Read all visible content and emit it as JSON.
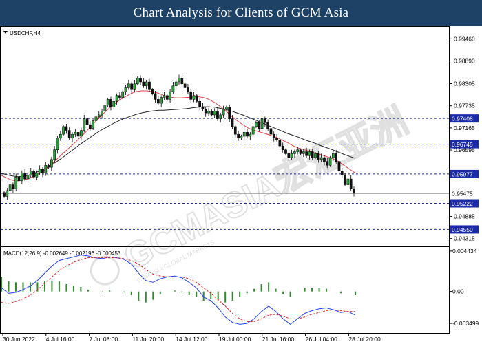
{
  "banner": {
    "title": "Chart Analysis for Clients of GCM Asia"
  },
  "chart_data": {
    "type": "candlestick",
    "symbol_label": "USDCHF,H4",
    "watermark": "GCMASIA宏汇亚洲",
    "watermark_sub": "GCMASIA GLOBAL MARKETS",
    "price_ylim": [
      0.9415,
      0.9975
    ],
    "price_ticks": [
      "0.99460",
      "0.98890",
      "0.98305",
      "0.97735",
      "0.97165",
      "0.96595",
      "0.96025",
      "0.95455",
      "0.94885",
      "0.94315"
    ],
    "x_ticks": [
      "30 Jun 2022",
      "4 Jul 16:00",
      "7 Jul 08:00",
      "11 Jul 20:00",
      "14 Jul 12:00",
      "19 Jul 00:00",
      "21 Jul 16:00",
      "26 Jul 04:00",
      "28 Jul 20:00"
    ],
    "levels": [
      {
        "value": 0.97408,
        "label": "0.97408"
      },
      {
        "value": 0.96745,
        "label": "0.96745"
      },
      {
        "value": 0.95977,
        "label": "0.95977"
      },
      {
        "value": 0.95222,
        "label": "0.95222"
      },
      {
        "value": 0.9455,
        "label": "0.94550"
      }
    ],
    "current_price": {
      "value": 0.95475,
      "label": "0.95475"
    },
    "close": [
      0.954,
      0.9555,
      0.957,
      0.956,
      0.959,
      0.958,
      0.96,
      0.9585,
      0.9595,
      0.9605,
      0.959,
      0.96,
      0.961,
      0.96,
      0.962,
      0.9615,
      0.9635,
      0.966,
      0.969,
      0.97,
      0.972,
      0.971,
      0.969,
      0.97,
      0.9705,
      0.9695,
      0.971,
      0.974,
      0.9725,
      0.9715,
      0.9735,
      0.9745,
      0.975,
      0.976,
      0.9775,
      0.979,
      0.977,
      0.9785,
      0.98,
      0.9795,
      0.981,
      0.982,
      0.983,
      0.9815,
      0.983,
      0.9845,
      0.9835,
      0.9825,
      0.9835,
      0.9815,
      0.9805,
      0.979,
      0.978,
      0.9795,
      0.98,
      0.979,
      0.981,
      0.9825,
      0.9835,
      0.9845,
      0.983,
      0.982,
      0.981,
      0.979,
      0.98,
      0.9785,
      0.977,
      0.9765,
      0.9755,
      0.976,
      0.975,
      0.976,
      0.974,
      0.975,
      0.9765,
      0.977,
      0.974,
      0.972,
      0.97,
      0.969,
      0.9695,
      0.9705,
      0.9695,
      0.97,
      0.972,
      0.973,
      0.9715,
      0.974,
      0.973,
      0.9715,
      0.97,
      0.969,
      0.9685,
      0.967,
      0.966,
      0.965,
      0.964,
      0.965,
      0.9655,
      0.966,
      0.965,
      0.9655,
      0.9645,
      0.9655,
      0.964,
      0.965,
      0.9635,
      0.964,
      0.963,
      0.962,
      0.964,
      0.965,
      0.963,
      0.9605,
      0.9595,
      0.957,
      0.9585,
      0.956,
      0.955
    ],
    "ma_fast": [
      0.9595,
      0.9588,
      0.9582,
      0.958,
      0.9582,
      0.9586,
      0.9592,
      0.96,
      0.961,
      0.9622,
      0.9636,
      0.965,
      0.9663,
      0.9676,
      0.969,
      0.9704,
      0.972,
      0.9735,
      0.975,
      0.9764,
      0.9776,
      0.9787,
      0.9796,
      0.9804,
      0.981,
      0.9812,
      0.9812,
      0.981,
      0.9806,
      0.98,
      0.9796,
      0.9794,
      0.9794,
      0.9795,
      0.9796,
      0.9797,
      0.9795,
      0.979,
      0.9782,
      0.9772,
      0.976,
      0.9747,
      0.9735,
      0.9725,
      0.9716,
      0.971,
      0.9706,
      0.9702,
      0.9697,
      0.9692,
      0.9685,
      0.9678,
      0.967,
      0.9664,
      0.966,
      0.9656,
      0.9651,
      0.9647,
      0.9642,
      0.9637,
      0.963,
      0.962,
      0.961,
      0.96
    ],
    "ma_slow": [
      0.96,
      0.9596,
      0.9593,
      0.9591,
      0.9592,
      0.9595,
      0.96,
      0.9606,
      0.9613,
      0.9621,
      0.963,
      0.964,
      0.9651,
      0.9662,
      0.9673,
      0.9683,
      0.9693,
      0.9703,
      0.9712,
      0.972,
      0.9728,
      0.9735,
      0.9741,
      0.9746,
      0.9751,
      0.9755,
      0.9758,
      0.976,
      0.9762,
      0.9762,
      0.9763,
      0.9764,
      0.9765,
      0.9766,
      0.9768,
      0.977,
      0.9771,
      0.9771,
      0.977,
      0.9767,
      0.9764,
      0.976,
      0.9755,
      0.975,
      0.9744,
      0.9738,
      0.9732,
      0.9726,
      0.972,
      0.9714,
      0.9708,
      0.9702,
      0.9697,
      0.9692,
      0.9686,
      0.9681,
      0.9676,
      0.967,
      0.9665,
      0.966,
      0.9654,
      0.9648,
      0.9643,
      0.9638
    ],
    "macd_label": "MACD(12,26,9) -0.002649 -0.002196 -0.000453",
    "macd_ylim": [
      -0.0044,
      0.0048
    ],
    "macd_ticks": [
      {
        "value": 0.004434,
        "label": "0.004434"
      },
      {
        "value": 0.0,
        "label": "0.00"
      },
      {
        "value": -0.003499,
        "label": "-0.003499"
      }
    ],
    "macd_line": [
      0.0004,
      -0.0002,
      -0.0001,
      0.0002,
      0.0006,
      0.0012,
      0.002,
      0.0028,
      0.0034,
      0.0036,
      0.0038,
      0.004,
      0.0039,
      0.0037,
      0.0036,
      0.0038,
      0.0037,
      0.0035,
      0.003,
      0.002,
      0.0012,
      0.001,
      0.0014,
      0.0016,
      0.0017,
      0.0015,
      0.001,
      0.0004,
      -0.0006,
      -0.001,
      -0.0018,
      -0.0028,
      -0.0034,
      -0.0036,
      -0.0035,
      -0.003,
      -0.0022,
      -0.0016,
      -0.0022,
      -0.003,
      -0.0036,
      -0.003,
      -0.0024,
      -0.0021,
      -0.0019,
      -0.0018,
      -0.002,
      -0.0023,
      -0.0022,
      -0.0026
    ],
    "signal_line": [
      -0.0012,
      -0.0013,
      -0.0011,
      -0.0008,
      -0.0004,
      0.0002,
      0.0009,
      0.0016,
      0.0023,
      0.0028,
      0.0032,
      0.0035,
      0.0037,
      0.0037,
      0.0037,
      0.0037,
      0.0037,
      0.0036,
      0.0034,
      0.003,
      0.0024,
      0.0019,
      0.0017,
      0.0016,
      0.0016,
      0.0016,
      0.0014,
      0.001,
      0.0004,
      -0.0002,
      -0.0009,
      -0.0016,
      -0.0024,
      -0.003,
      -0.0033,
      -0.0033,
      -0.003,
      -0.0026,
      -0.0025,
      -0.0027,
      -0.003,
      -0.003,
      -0.0028,
      -0.0025,
      -0.0023,
      -0.0021,
      -0.002,
      -0.0021,
      -0.0022,
      -0.0022
    ],
    "colors": {
      "bull": "#2e9e3e",
      "bear": "#111111",
      "ma_fast": "#e0404a",
      "ma_slow": "#222222",
      "level": "#1a2aa8",
      "level_label_bg": "#1a2aa8",
      "current_price": "#999999",
      "macd": "#2244ee",
      "signal": "#dd2222",
      "hist": "#2e8b2e",
      "banner": "#1d4266"
    }
  }
}
